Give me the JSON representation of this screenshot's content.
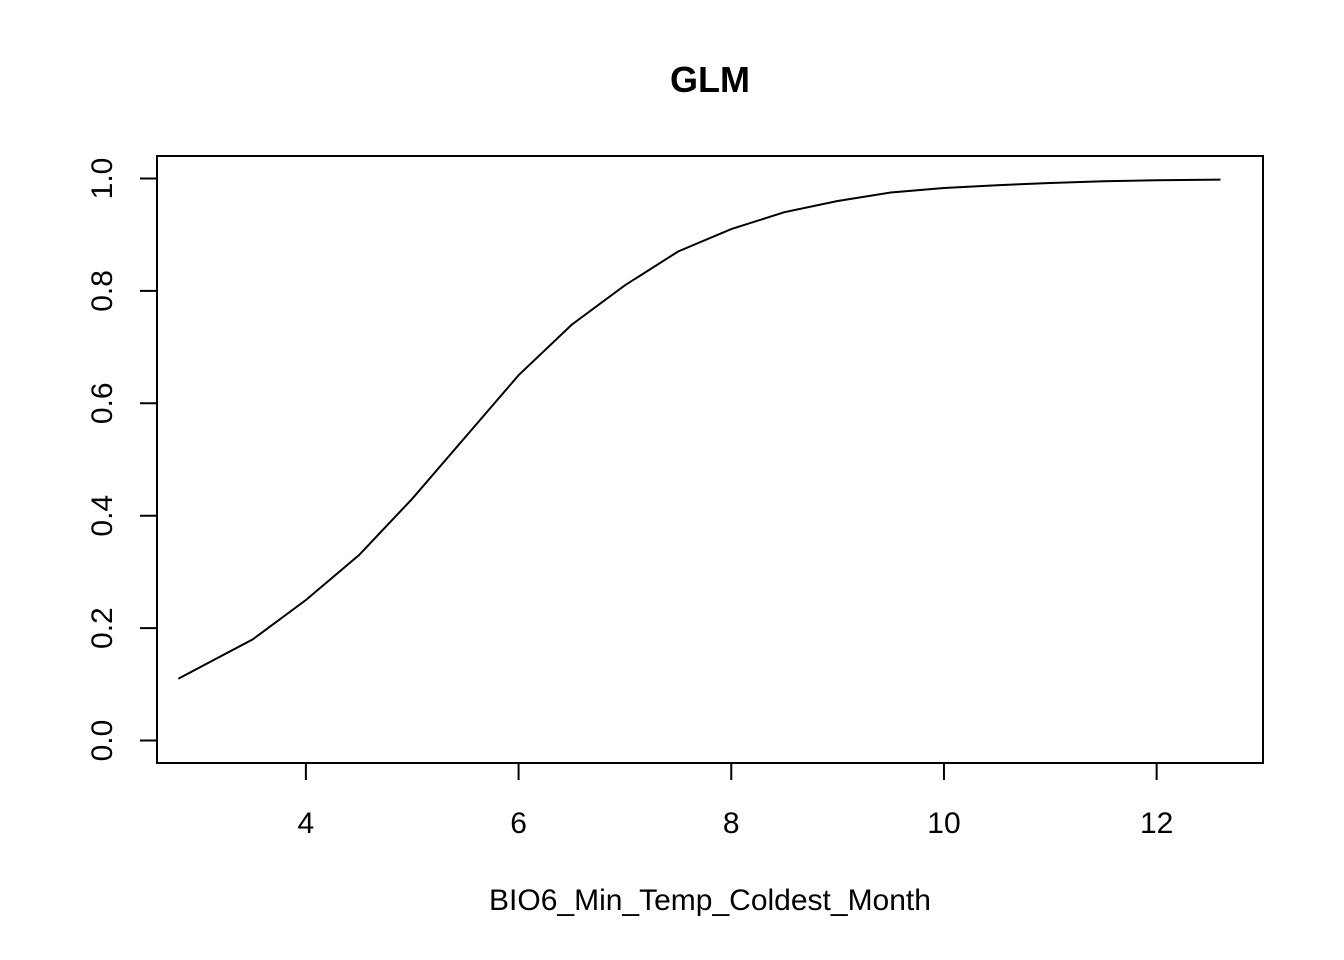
{
  "chart_data": {
    "type": "line",
    "title": "GLM",
    "xlabel": "BIO6_Min_Temp_Coldest_Month",
    "ylabel": "",
    "xlim": [
      2.6,
      13.0
    ],
    "ylim": [
      -0.04,
      1.04
    ],
    "x_ticks": [
      4,
      6,
      8,
      10,
      12
    ],
    "y_ticks": [
      0.0,
      0.2,
      0.4,
      0.6,
      0.8,
      1.0
    ],
    "x_tick_labels": [
      "4",
      "6",
      "8",
      "10",
      "12"
    ],
    "y_tick_labels": [
      "0.0",
      "0.2",
      "0.4",
      "0.6",
      "0.8",
      "1.0"
    ],
    "grid": false,
    "series": [
      {
        "color": "#000000",
        "x": [
          2.8,
          3.0,
          3.5,
          4.0,
          4.5,
          5.0,
          5.5,
          6.0,
          6.5,
          7.0,
          7.5,
          8.0,
          8.5,
          9.0,
          9.5,
          10.0,
          10.5,
          11.0,
          11.5,
          12.0,
          12.6
        ],
        "y": [
          0.11,
          0.13,
          0.18,
          0.25,
          0.33,
          0.43,
          0.54,
          0.65,
          0.74,
          0.81,
          0.87,
          0.91,
          0.94,
          0.96,
          0.975,
          0.983,
          0.988,
          0.992,
          0.995,
          0.997,
          0.998
        ]
      }
    ]
  }
}
